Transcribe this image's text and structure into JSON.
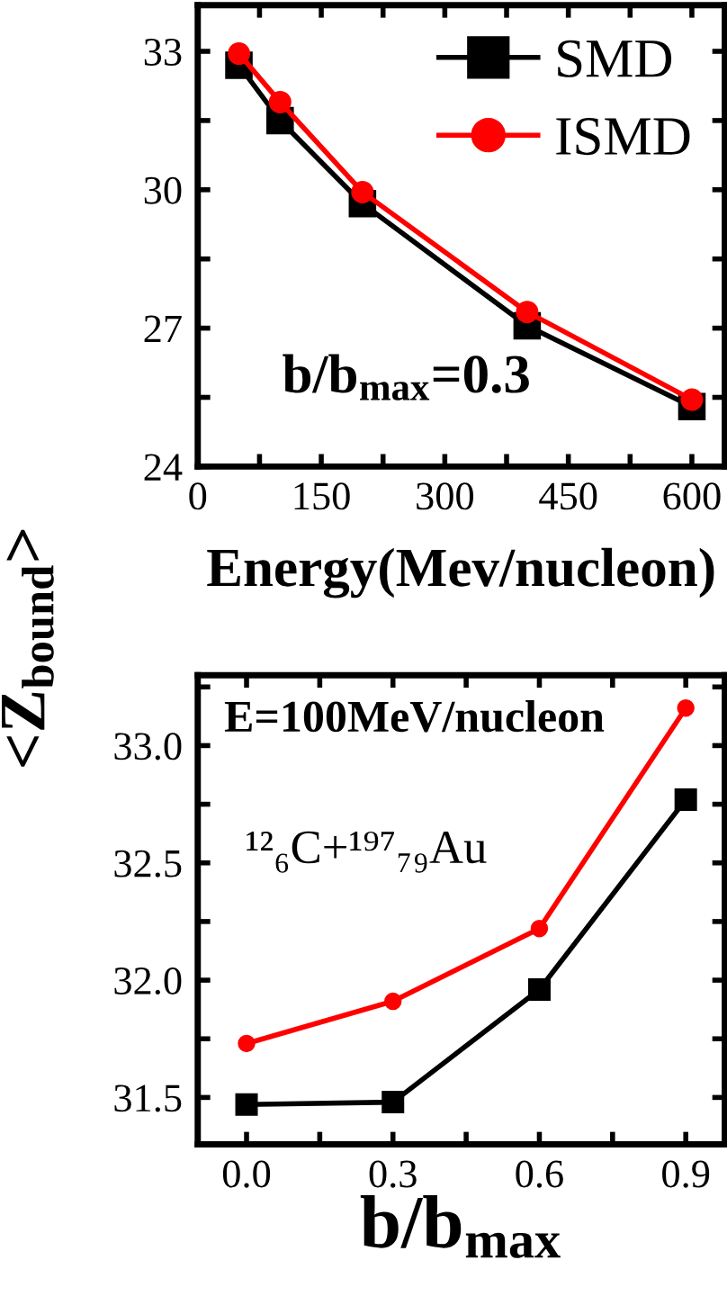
{
  "chart_data": [
    {
      "type": "line",
      "xlabel": "Energy(Mev/nucleon)",
      "ylabel": "<Z$_{bound}$>",
      "x": [
        50,
        100,
        200,
        400,
        600
      ],
      "series": [
        {
          "name": "SMD",
          "color": "#000000",
          "marker": "square",
          "values": [
            32.7,
            31.5,
            29.7,
            27.05,
            25.3
          ]
        },
        {
          "name": "ISMD",
          "color": "#ff0000",
          "marker": "circle",
          "values": [
            32.95,
            31.9,
            29.95,
            27.35,
            25.45
          ]
        }
      ],
      "xlim": [
        0,
        640
      ],
      "ylim": [
        24,
        34
      ],
      "xticks": [
        0,
        {
          "value": 75,
          "label": null
        },
        150,
        {
          "value": 225,
          "label": null
        },
        300,
        {
          "value": 375,
          "label": null
        },
        450,
        {
          "value": 525,
          "label": null
        },
        600
      ],
      "yticks": [
        24,
        {
          "value": 25.5,
          "label": null
        },
        27,
        {
          "value": 28.5,
          "label": null
        },
        30,
        {
          "value": 31.5,
          "label": null
        },
        33
      ],
      "annotations": [
        "b/b$_{max}$=0.3"
      ],
      "legend": "top right",
      "grid": false,
      "line_style": "solid"
    },
    {
      "type": "line",
      "xlabel": "b/b$_{max}$",
      "x": [
        0.0,
        0.3,
        0.6,
        0.9
      ],
      "series": [
        {
          "color": "#000000",
          "marker": "square",
          "values": [
            31.47,
            31.48,
            31.96,
            32.77
          ]
        },
        {
          "color": "#ff0000",
          "marker": "circle",
          "values": [
            31.73,
            31.91,
            32.22,
            33.16
          ]
        }
      ],
      "xlim": [
        -0.1,
        0.98
      ],
      "ylim": [
        31.3,
        33.3
      ],
      "xticks": [
        {
          "value": 0.0,
          "label": "0.0"
        },
        {
          "value": 0.15,
          "label": null
        },
        {
          "value": 0.3,
          "label": "0.3"
        },
        {
          "value": 0.45,
          "label": null
        },
        {
          "value": 0.6,
          "label": "0.6"
        },
        {
          "value": 0.75,
          "label": null
        },
        {
          "value": 0.9,
          "label": "0.9"
        }
      ],
      "yticks": [
        {
          "value": 31.5,
          "label": "31.5"
        },
        {
          "value": 31.75,
          "label": null
        },
        {
          "value": 32.0,
          "label": "32.0"
        },
        {
          "value": 32.25,
          "label": null
        },
        {
          "value": 32.5,
          "label": "32.5"
        },
        {
          "value": 32.75,
          "label": null
        },
        {
          "value": 33.0,
          "label": "33.0"
        },
        {
          "value": 33.25,
          "label": null
        }
      ],
      "annotations": [
        "E=100MeV/nucleon",
        "¹²₆C+¹⁹⁷₇₉Au"
      ],
      "legend": false,
      "grid": false,
      "line_style": "solid"
    }
  ]
}
